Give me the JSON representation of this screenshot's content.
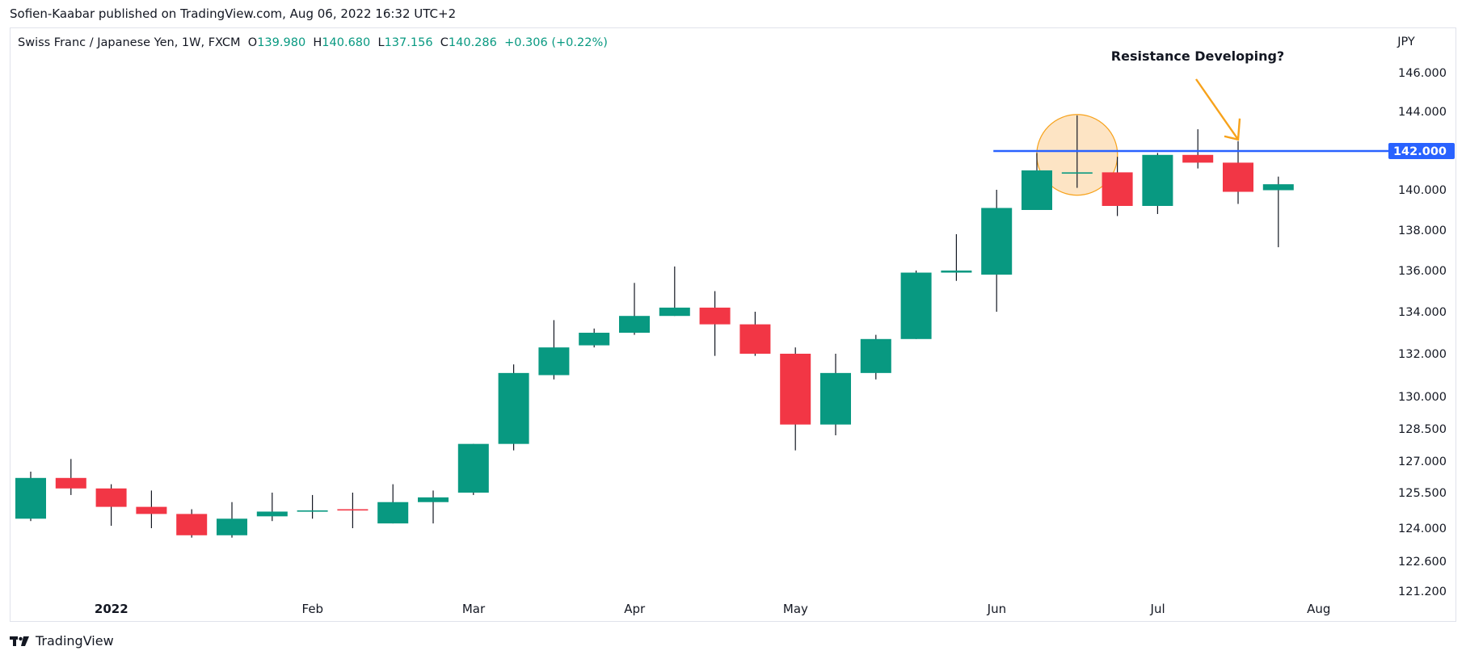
{
  "publisher_line": "Sofien-Kaabar published on TradingView.com, Aug 06, 2022 16:32 UTC+2",
  "brand": "TradingView",
  "legend": {
    "symbol": "Swiss Franc / Japanese Yen, 1W, FXCM",
    "o_label": "O",
    "o": "139.980",
    "h_label": "H",
    "h": "140.680",
    "l_label": "L",
    "l": "137.156",
    "c_label": "C",
    "c": "140.286",
    "change": "+0.306 (+0.22%)"
  },
  "colors": {
    "up": "#089981",
    "down": "#f23645",
    "resistance": "#2962ff",
    "annotation": "#f7a21b",
    "highlight_fill": "#fde4c4"
  },
  "chart_data": {
    "type": "candlestick",
    "currency_label": "JPY",
    "y_ticks": [
      121.2,
      122.6,
      124.0,
      125.5,
      127.0,
      128.5,
      130.0,
      132.0,
      134.0,
      136.0,
      138.0,
      140.0,
      142.0,
      144.0,
      146.0
    ],
    "y_tick_labels": [
      "121.200",
      "122.600",
      "124.000",
      "125.500",
      "127.000",
      "128.500",
      "130.000",
      "132.000",
      "134.000",
      "136.000",
      "138.000",
      "140.000",
      "142.000",
      "144.000",
      "146.000"
    ],
    "x_months": [
      {
        "label": "2022",
        "week": 1,
        "bold": true
      },
      {
        "label": "Feb",
        "week": 6
      },
      {
        "label": "Mar",
        "week": 10
      },
      {
        "label": "Apr",
        "week": 14
      },
      {
        "label": "May",
        "week": 18
      },
      {
        "label": "Jun",
        "week": 23
      },
      {
        "label": "Jul",
        "week": 27
      },
      {
        "label": "Aug",
        "week": 31
      }
    ],
    "candles": [
      {
        "o": 124.4,
        "h": 126.5,
        "l": 124.3,
        "c": 126.2
      },
      {
        "o": 126.2,
        "h": 127.1,
        "l": 125.4,
        "c": 125.7
      },
      {
        "o": 125.7,
        "h": 125.9,
        "l": 124.1,
        "c": 124.9
      },
      {
        "o": 124.9,
        "h": 125.6,
        "l": 124.0,
        "c": 124.6
      },
      {
        "o": 124.6,
        "h": 124.8,
        "l": 123.6,
        "c": 123.7
      },
      {
        "o": 123.7,
        "h": 125.1,
        "l": 123.6,
        "c": 124.4
      },
      {
        "o": 124.5,
        "h": 125.5,
        "l": 124.3,
        "c": 124.7
      },
      {
        "o": 124.7,
        "h": 125.4,
        "l": 124.4,
        "c": 124.75
      },
      {
        "o": 124.8,
        "h": 125.5,
        "l": 124.0,
        "c": 124.75
      },
      {
        "o": 124.2,
        "h": 125.9,
        "l": 124.2,
        "c": 125.1
      },
      {
        "o": 125.1,
        "h": 125.6,
        "l": 124.2,
        "c": 125.3
      },
      {
        "o": 125.5,
        "h": 127.8,
        "l": 125.4,
        "c": 127.8
      },
      {
        "o": 127.8,
        "h": 131.5,
        "l": 127.5,
        "c": 131.1
      },
      {
        "o": 131.0,
        "h": 133.6,
        "l": 130.8,
        "c": 132.3
      },
      {
        "o": 132.4,
        "h": 133.2,
        "l": 132.3,
        "c": 133.0
      },
      {
        "o": 133.0,
        "h": 135.4,
        "l": 132.9,
        "c": 133.8
      },
      {
        "o": 133.8,
        "h": 136.2,
        "l": 133.8,
        "c": 134.2
      },
      {
        "o": 134.2,
        "h": 135.0,
        "l": 131.9,
        "c": 133.4
      },
      {
        "o": 133.4,
        "h": 134.0,
        "l": 131.9,
        "c": 132.0
      },
      {
        "o": 132.0,
        "h": 132.3,
        "l": 127.5,
        "c": 128.7
      },
      {
        "o": 128.7,
        "h": 132.0,
        "l": 128.2,
        "c": 131.1
      },
      {
        "o": 131.1,
        "h": 132.9,
        "l": 130.8,
        "c": 132.7
      },
      {
        "o": 132.7,
        "h": 136.0,
        "l": 132.7,
        "c": 135.9
      },
      {
        "o": 135.9,
        "h": 137.8,
        "l": 135.5,
        "c": 136.0
      },
      {
        "o": 135.8,
        "h": 140.0,
        "l": 134.0,
        "c": 139.1
      },
      {
        "o": 139.0,
        "h": 141.9,
        "l": 139.0,
        "c": 141.0
      },
      {
        "o": 140.9,
        "h": 143.8,
        "l": 140.1,
        "c": 140.9
      },
      {
        "o": 140.9,
        "h": 141.7,
        "l": 138.7,
        "c": 139.2
      },
      {
        "o": 139.2,
        "h": 141.9,
        "l": 138.8,
        "c": 141.8
      },
      {
        "o": 141.8,
        "h": 143.1,
        "l": 141.1,
        "c": 141.4
      },
      {
        "o": 141.4,
        "h": 142.5,
        "l": 139.3,
        "c": 139.9
      },
      {
        "o": 139.98,
        "h": 140.68,
        "l": 137.156,
        "c": 140.286
      }
    ],
    "resistance": {
      "value": 142.0,
      "label": "142.000",
      "from_week": 24
    },
    "annotation": {
      "text": "Resistance Developing?",
      "target_week": 30
    },
    "highlight_week": 26
  }
}
